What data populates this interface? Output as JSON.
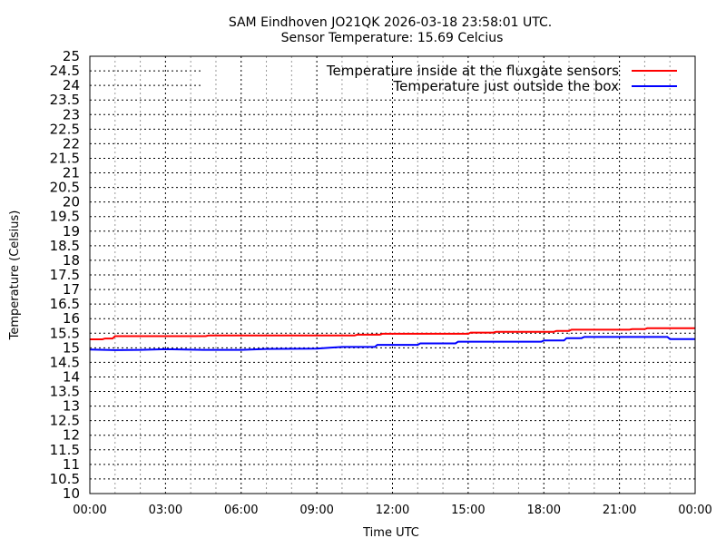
{
  "chart_data": {
    "type": "line",
    "title": "SAM Eindhoven JO21QK 2026-03-18 23:58:01 UTC.",
    "subtitle": "Sensor Temperature: 15.69 Celcius",
    "xlabel": "Time UTC",
    "ylabel": "Temperature (Celsius)",
    "xlim": [
      0,
      24
    ],
    "ylim": [
      10,
      25
    ],
    "grid": true,
    "legend_position": "top-right",
    "x_ticks": [
      0,
      3,
      6,
      9,
      12,
      15,
      18,
      21,
      24
    ],
    "x_tick_labels": [
      "00:00",
      "03:00",
      "06:00",
      "09:00",
      "12:00",
      "15:00",
      "18:00",
      "21:00",
      "00:00"
    ],
    "y_ticks": [
      10,
      10.5,
      11,
      11.5,
      12,
      12.5,
      13,
      13.5,
      14,
      14.5,
      15,
      15.5,
      16,
      16.5,
      17,
      17.5,
      18,
      18.5,
      19,
      19.5,
      20,
      20.5,
      21,
      21.5,
      22,
      22.5,
      23,
      23.5,
      24,
      24.5,
      25
    ],
    "y_tick_labels": [
      "10",
      "10.5",
      "11",
      "11.5",
      "12",
      "12.5",
      "13",
      "13.5",
      "14",
      "14.5",
      "15",
      "15.5",
      "16",
      "16.5",
      "17",
      "17.5",
      "18",
      "18.5",
      "19",
      "19.5",
      "20",
      "20.5",
      "21",
      "21.5",
      "22",
      "22.5",
      "23",
      "23.5",
      "24",
      "24.5",
      "25"
    ],
    "series": [
      {
        "name": "Temperature inside at the fluxgate sensors",
        "color": "#ff0000",
        "x": [
          0,
          0.5,
          0.6,
          0.9,
          1.0,
          4.6,
          4.7,
          10.5,
          10.6,
          11.5,
          11.6,
          15.0,
          15.1,
          16.0,
          16.1,
          18.4,
          18.5,
          19.0,
          19.1,
          21.4,
          21.5,
          22.0,
          22.1,
          24
        ],
        "y": [
          15.29,
          15.29,
          15.32,
          15.32,
          15.4,
          15.4,
          15.42,
          15.42,
          15.45,
          15.45,
          15.48,
          15.48,
          15.52,
          15.52,
          15.55,
          15.55,
          15.58,
          15.58,
          15.62,
          15.62,
          15.64,
          15.64,
          15.67,
          15.67
        ]
      },
      {
        "name": "Temperature just outside the box",
        "color": "#0000ff",
        "x": [
          0,
          1.0,
          2.0,
          3.0,
          4.5,
          6.0,
          7.0,
          9.0,
          9.5,
          10.0,
          11.3,
          11.4,
          13.0,
          13.1,
          14.5,
          14.6,
          17.9,
          18.0,
          18.8,
          18.9,
          19.5,
          19.6,
          22.9,
          23.0,
          24
        ],
        "y": [
          14.94,
          14.92,
          14.93,
          14.95,
          14.93,
          14.93,
          14.96,
          14.97,
          15.0,
          15.03,
          15.03,
          15.1,
          15.1,
          15.15,
          15.15,
          15.21,
          15.21,
          15.25,
          15.25,
          15.33,
          15.33,
          15.37,
          15.37,
          15.3,
          15.3
        ]
      }
    ]
  }
}
